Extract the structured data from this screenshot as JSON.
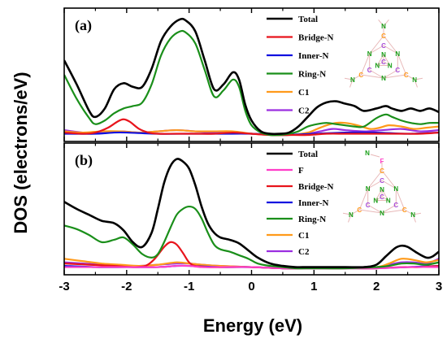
{
  "figure": {
    "xlabel": "Energy (eV)",
    "ylabel": "DOS (electrons/eV)",
    "xticks": [
      "-3",
      "-2",
      "-1",
      "0",
      "1",
      "2",
      "3"
    ]
  },
  "colors": {
    "Total": "#000000",
    "F": "#ff3ec8",
    "Bridge-N": "#e8141c",
    "Inner-N": "#1010e0",
    "Ring-N": "#1a8f1a",
    "C1": "#ff9a1a",
    "C2": "#9b2fe0",
    "atom_N": "#1aa01a",
    "atom_C1": "#ff9a1a",
    "atom_C2": "#a64ad6",
    "atom_F": "#ff3ec8",
    "bond": "#e8b8b8"
  },
  "molecule": {
    "atom_N": "N",
    "atom_C": "C",
    "atom_F": "F"
  },
  "chart_data": [
    {
      "type": "line",
      "panel_label": "(a)",
      "xlim": [
        -3,
        3
      ],
      "ylim": [
        0,
        1
      ],
      "legend": [
        "Total",
        "Bridge-N",
        "Inner-N",
        "Ring-N",
        "C1",
        "C2"
      ],
      "series": [
        {
          "name": "Total",
          "x": [
            -3,
            -2.8,
            -2.6,
            -2.5,
            -2.35,
            -2.2,
            -2.05,
            -1.9,
            -1.75,
            -1.6,
            -1.45,
            -1.3,
            -1.15,
            -1.05,
            -0.9,
            -0.75,
            -0.6,
            -0.45,
            -0.3,
            -0.2,
            -0.1,
            0,
            0.15,
            0.3,
            0.45,
            0.6,
            0.75,
            0.9,
            1.05,
            1.2,
            1.35,
            1.5,
            1.65,
            1.8,
            2,
            2.15,
            2.25,
            2.4,
            2.55,
            2.7,
            2.85,
            3
          ],
          "y": [
            0.62,
            0.42,
            0.2,
            0.15,
            0.22,
            0.38,
            0.43,
            0.4,
            0.4,
            0.55,
            0.78,
            0.9,
            0.96,
            0.95,
            0.86,
            0.62,
            0.38,
            0.42,
            0.52,
            0.46,
            0.25,
            0.12,
            0.03,
            0.01,
            0.01,
            0.02,
            0.07,
            0.15,
            0.23,
            0.27,
            0.28,
            0.26,
            0.24,
            0.2,
            0.22,
            0.24,
            0.22,
            0.2,
            0.22,
            0.2,
            0.22,
            0.19
          ]
        },
        {
          "name": "Bridge-N",
          "x": [
            -3,
            -2.7,
            -2.5,
            -2.3,
            -2.15,
            -2.05,
            -1.95,
            -1.8,
            -1.65,
            -1.5,
            -1.2,
            -0.9,
            -0.6,
            -0.3,
            0,
            0.3,
            0.6,
            0.9,
            1.2,
            1.5,
            1.8,
            2.1,
            2.4,
            2.7,
            3
          ],
          "y": [
            0.02,
            0.01,
            0.02,
            0.06,
            0.11,
            0.13,
            0.11,
            0.05,
            0.02,
            0.01,
            0.01,
            0.01,
            0.01,
            0.02,
            0.01,
            0,
            0,
            0,
            0.01,
            0.01,
            0.01,
            0.01,
            0.01,
            0.01,
            0.02
          ]
        },
        {
          "name": "Inner-N",
          "x": [
            -3,
            -2.5,
            -2.2,
            -2,
            -1.5,
            -1,
            -0.5,
            0,
            0.5,
            1,
            1.5,
            2,
            2.5,
            3
          ],
          "y": [
            0.01,
            0.01,
            0.02,
            0.02,
            0.01,
            0.01,
            0.01,
            0.01,
            0,
            0.01,
            0.02,
            0.02,
            0.01,
            0.02
          ]
        },
        {
          "name": "Ring-N",
          "x": [
            -3,
            -2.8,
            -2.6,
            -2.5,
            -2.35,
            -2.2,
            -2.05,
            -1.9,
            -1.75,
            -1.6,
            -1.45,
            -1.3,
            -1.15,
            -1.05,
            -0.9,
            -0.75,
            -0.6,
            -0.45,
            -0.3,
            -0.2,
            -0.1,
            0,
            0.15,
            0.3,
            0.45,
            0.6,
            0.75,
            0.9,
            1.05,
            1.2,
            1.35,
            1.5,
            1.65,
            1.8,
            2,
            2.15,
            2.25,
            2.4,
            2.55,
            2.7,
            2.85,
            3
          ],
          "y": [
            0.5,
            0.3,
            0.14,
            0.09,
            0.12,
            0.18,
            0.22,
            0.24,
            0.27,
            0.42,
            0.66,
            0.8,
            0.86,
            0.85,
            0.76,
            0.54,
            0.32,
            0.37,
            0.46,
            0.4,
            0.2,
            0.08,
            0.02,
            0,
            0,
            0.01,
            0.03,
            0.07,
            0.09,
            0.1,
            0.09,
            0.08,
            0.07,
            0.07,
            0.14,
            0.17,
            0.15,
            0.12,
            0.1,
            0.09,
            0.1,
            0.1
          ]
        },
        {
          "name": "C1",
          "x": [
            -3,
            -2.7,
            -2.4,
            -2.1,
            -1.8,
            -1.5,
            -1.2,
            -0.9,
            -0.6,
            -0.3,
            0,
            0.3,
            0.6,
            0.9,
            1.05,
            1.2,
            1.35,
            1.5,
            1.7,
            1.9,
            2.05,
            2.2,
            2.4,
            2.6,
            2.8,
            3
          ],
          "y": [
            0.03,
            0.02,
            0.03,
            0.03,
            0.02,
            0.03,
            0.04,
            0.03,
            0.03,
            0.03,
            0.01,
            0,
            0,
            0.02,
            0.05,
            0.08,
            0.1,
            0.1,
            0.08,
            0.05,
            0.06,
            0.08,
            0.07,
            0.05,
            0.06,
            0.07
          ]
        },
        {
          "name": "C2",
          "x": [
            -3,
            -2.7,
            -2.4,
            -2.1,
            -1.8,
            -1.5,
            -1.2,
            -0.9,
            -0.6,
            -0.3,
            0,
            0.3,
            0.6,
            0.9,
            1.1,
            1.3,
            1.5,
            1.8,
            2.1,
            2.4,
            2.7,
            3
          ],
          "y": [
            0.04,
            0.02,
            0.02,
            0.03,
            0.02,
            0.03,
            0.04,
            0.03,
            0.02,
            0.02,
            0.01,
            0,
            0,
            0.01,
            0.03,
            0.05,
            0.04,
            0.03,
            0.04,
            0.05,
            0.03,
            0.04
          ]
        }
      ]
    },
    {
      "type": "line",
      "panel_label": "(b)",
      "xlim": [
        -3,
        3
      ],
      "ylim": [
        0,
        1
      ],
      "legend": [
        "Total",
        "F",
        "Bridge-N",
        "Inner-N",
        "Ring-N",
        "C1",
        "C2"
      ],
      "series": [
        {
          "name": "Total",
          "x": [
            -3,
            -2.8,
            -2.6,
            -2.4,
            -2.2,
            -2.05,
            -1.9,
            -1.75,
            -1.6,
            -1.5,
            -1.4,
            -1.3,
            -1.2,
            -1.1,
            -1,
            -0.9,
            -0.8,
            -0.7,
            -0.6,
            -0.5,
            -0.35,
            -0.2,
            -0.05,
            0.1,
            0.3,
            0.5,
            0.7,
            0.9,
            1.2,
            1.5,
            1.8,
            2,
            2.15,
            2.3,
            2.4,
            2.5,
            2.65,
            2.8,
            2.9,
            3
          ],
          "y": [
            0.56,
            0.5,
            0.45,
            0.4,
            0.38,
            0.32,
            0.22,
            0.18,
            0.3,
            0.5,
            0.72,
            0.86,
            0.92,
            0.9,
            0.84,
            0.7,
            0.52,
            0.38,
            0.3,
            0.26,
            0.24,
            0.21,
            0.15,
            0.09,
            0.04,
            0.02,
            0.01,
            0.01,
            0.01,
            0.01,
            0.01,
            0.03,
            0.1,
            0.17,
            0.19,
            0.18,
            0.13,
            0.09,
            0.1,
            0.14
          ]
        },
        {
          "name": "F",
          "x": [
            -3,
            -2.5,
            -2,
            -1.5,
            -1.2,
            -1,
            -0.8,
            -0.5,
            0,
            0.5,
            1,
            1.5,
            2,
            2.5,
            3
          ],
          "y": [
            0.01,
            0.01,
            0.01,
            0.01,
            0.02,
            0.02,
            0.01,
            0.01,
            0.01,
            0,
            0,
            0,
            0,
            0.01,
            0.01
          ]
        },
        {
          "name": "Bridge-N",
          "x": [
            -3,
            -2.6,
            -2.2,
            -1.9,
            -1.7,
            -1.55,
            -1.4,
            -1.3,
            -1.2,
            -1.1,
            -1,
            -0.9,
            -0.7,
            -0.4,
            0,
            0.5,
            1,
            1.5,
            2,
            2.4,
            2.7,
            3
          ],
          "y": [
            0.04,
            0.03,
            0.02,
            0.01,
            0.02,
            0.08,
            0.18,
            0.22,
            0.2,
            0.13,
            0.05,
            0.02,
            0.01,
            0.01,
            0.01,
            0,
            0,
            0,
            0,
            0.01,
            0.01,
            0.02
          ]
        },
        {
          "name": "Inner-N",
          "x": [
            -3,
            -2.5,
            -2,
            -1.5,
            -1.2,
            -1,
            -0.5,
            0,
            0.5,
            1,
            1.5,
            2,
            2.5,
            3
          ],
          "y": [
            0.02,
            0.01,
            0.01,
            0.01,
            0.02,
            0.02,
            0.01,
            0.01,
            0,
            0,
            0,
            0,
            0.01,
            0.02
          ]
        },
        {
          "name": "Ring-N",
          "x": [
            -3,
            -2.8,
            -2.6,
            -2.4,
            -2.2,
            -2.05,
            -1.9,
            -1.75,
            -1.6,
            -1.5,
            -1.4,
            -1.3,
            -1.2,
            -1.1,
            -1,
            -0.9,
            -0.8,
            -0.7,
            -0.6,
            -0.5,
            -0.35,
            -0.2,
            -0.05,
            0.1,
            0.3,
            0.5,
            0.7,
            1,
            1.5,
            2,
            2.2,
            2.4,
            2.6,
            2.8,
            3
          ],
          "y": [
            0.36,
            0.33,
            0.28,
            0.22,
            0.24,
            0.26,
            0.2,
            0.12,
            0.09,
            0.12,
            0.22,
            0.34,
            0.45,
            0.5,
            0.52,
            0.5,
            0.42,
            0.3,
            0.2,
            0.16,
            0.14,
            0.11,
            0.08,
            0.04,
            0.02,
            0.01,
            0,
            0,
            0,
            0.01,
            0.02,
            0.04,
            0.04,
            0.03,
            0.05
          ]
        },
        {
          "name": "C1",
          "x": [
            -3,
            -2.7,
            -2.4,
            -2.1,
            -1.8,
            -1.5,
            -1.2,
            -1,
            -0.8,
            -0.5,
            0,
            0.5,
            1,
            1.5,
            2,
            2.2,
            2.4,
            2.6,
            2.8,
            3
          ],
          "y": [
            0.08,
            0.06,
            0.04,
            0.03,
            0.02,
            0.03,
            0.05,
            0.04,
            0.03,
            0.02,
            0.01,
            0,
            0,
            0,
            0.01,
            0.04,
            0.08,
            0.07,
            0.05,
            0.07
          ]
        },
        {
          "name": "C2",
          "x": [
            -3,
            -2.7,
            -2.4,
            -2.1,
            -1.8,
            -1.5,
            -1.2,
            -1,
            -0.8,
            -0.5,
            0,
            0.5,
            1,
            1.5,
            2,
            2.2,
            2.4,
            2.6,
            2.8,
            3
          ],
          "y": [
            0.05,
            0.04,
            0.03,
            0.02,
            0.02,
            0.03,
            0.04,
            0.04,
            0.03,
            0.02,
            0.01,
            0,
            0,
            0,
            0.01,
            0.03,
            0.05,
            0.05,
            0.04,
            0.08
          ]
        }
      ]
    }
  ]
}
